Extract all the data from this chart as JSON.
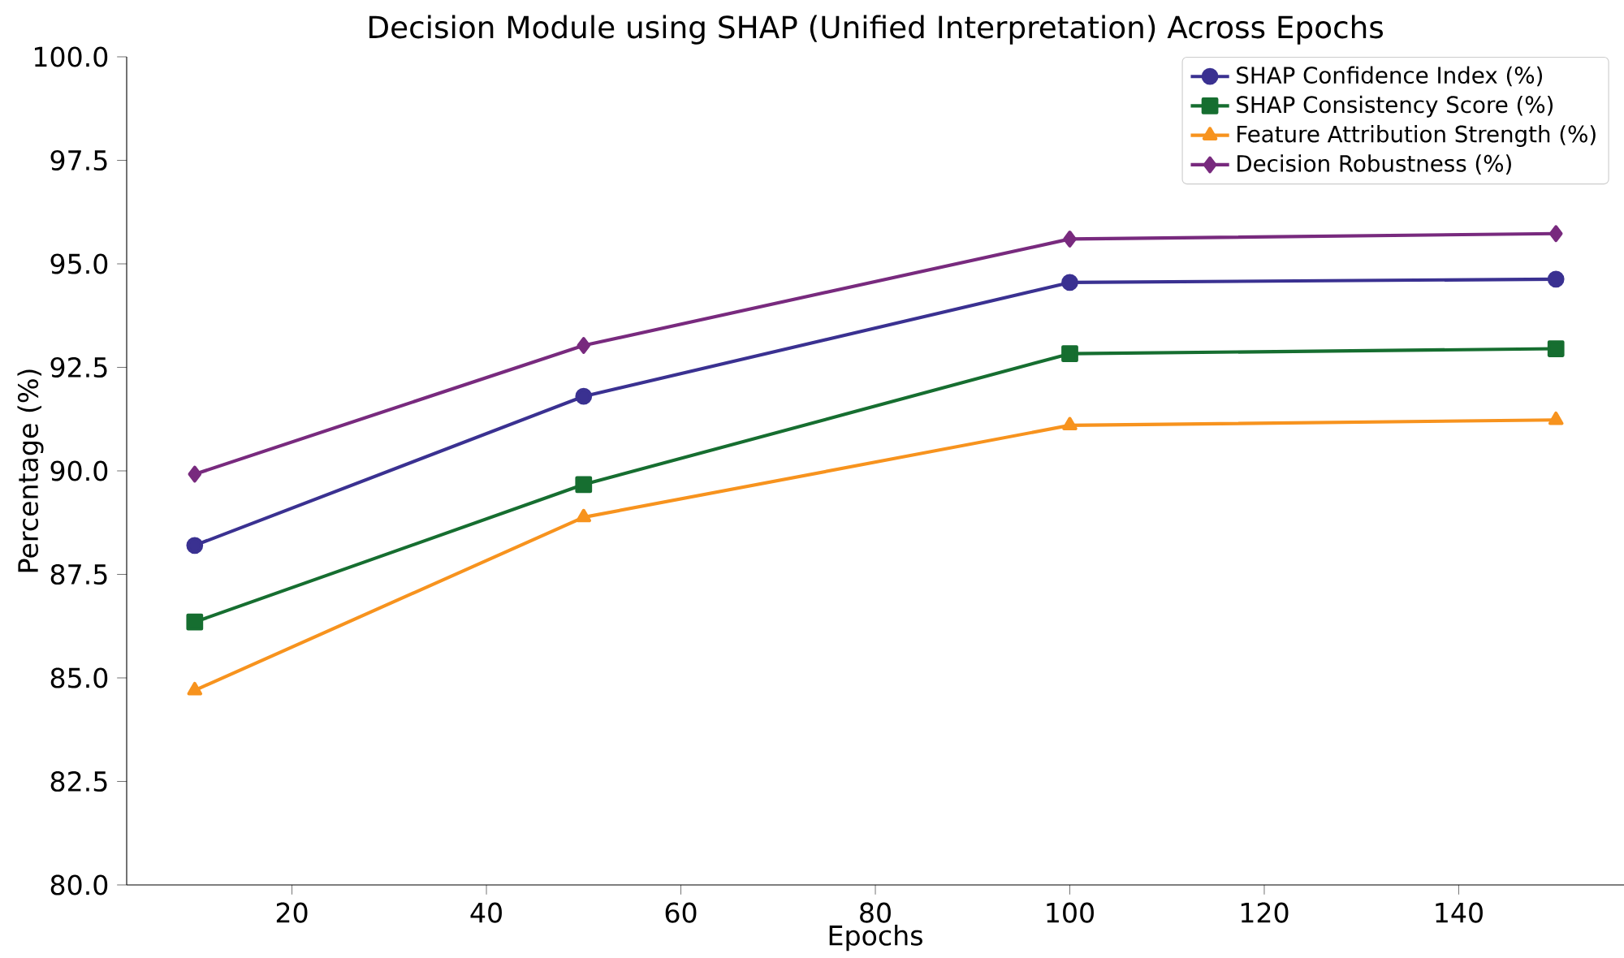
{
  "chart_data": {
    "type": "line",
    "title": "Decision Module using SHAP (Unified Interpretation) Across Epochs",
    "xlabel": "Epochs",
    "ylabel": "Percentage (%)",
    "x": [
      10,
      50,
      100,
      150
    ],
    "series": [
      {
        "name": "SHAP Confidence Index (%)",
        "color": "#3a3191",
        "marker": "circle",
        "values": [
          88.2,
          91.8,
          94.55,
          94.63
        ]
      },
      {
        "name": "SHAP Consistency Score (%)",
        "color": "#166e30",
        "marker": "square",
        "values": [
          86.35,
          89.67,
          92.83,
          92.95
        ]
      },
      {
        "name": "Feature Attribution Strength (%)",
        "color": "#f7931e",
        "marker": "triangle",
        "values": [
          84.7,
          88.88,
          91.1,
          91.23
        ]
      },
      {
        "name": "Decision Robustness (%)",
        "color": "#782a7e",
        "marker": "diamond",
        "values": [
          89.92,
          93.03,
          95.6,
          95.73
        ]
      }
    ],
    "xlim": [
      3,
      157
    ],
    "ylim": [
      80,
      100
    ],
    "xticks": [
      20,
      40,
      60,
      80,
      100,
      120,
      140
    ],
    "yticks": [
      {
        "value": 80,
        "label": "80.0"
      },
      {
        "value": 82.5,
        "label": "82.5"
      },
      {
        "value": 85,
        "label": "85.0"
      },
      {
        "value": 87.5,
        "label": "87.5"
      },
      {
        "value": 90,
        "label": "90.0"
      },
      {
        "value": 92.5,
        "label": "92.5"
      },
      {
        "value": 95,
        "label": "95.0"
      },
      {
        "value": 97.5,
        "label": "97.5"
      },
      {
        "value": 100,
        "label": "100.0"
      }
    ],
    "legend": "top right",
    "line_style": "solid"
  }
}
